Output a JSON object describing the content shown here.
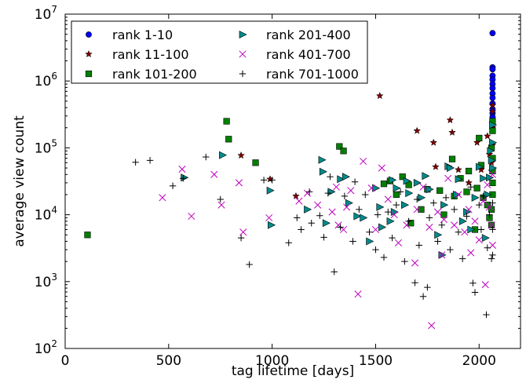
{
  "chart_data": {
    "type": "scatter",
    "xlabel": "tag lifetime [days]",
    "ylabel": "average view count",
    "xlim": [
      0,
      2200
    ],
    "ylim": [
      100,
      10000000
    ],
    "yscale": "log",
    "xticks": [
      {
        "value": 0,
        "label": "0"
      },
      {
        "value": 500,
        "label": "500"
      },
      {
        "value": 1000,
        "label": "1000"
      },
      {
        "value": 1500,
        "label": "1500"
      },
      {
        "value": 2000,
        "label": "2000"
      }
    ],
    "yticks": [
      {
        "value": 100,
        "base": "10",
        "exp": "2"
      },
      {
        "value": 1000,
        "base": "10",
        "exp": "3"
      },
      {
        "value": 10000,
        "base": "10",
        "exp": "4"
      },
      {
        "value": 100000,
        "base": "10",
        "exp": "5"
      },
      {
        "value": 1000000,
        "base": "10",
        "exp": "6"
      },
      {
        "value": 10000000,
        "base": "10",
        "exp": "7"
      }
    ],
    "grid": false,
    "legend_position": "top-left",
    "series": [
      {
        "name": "rank 1-10",
        "marker": "circle",
        "color": "#0000ff",
        "points": [
          [
            2065,
            5200000
          ],
          [
            2065,
            1600000
          ],
          [
            2065,
            1500000
          ],
          [
            2065,
            1200000
          ],
          [
            2065,
            1050000
          ],
          [
            2065,
            900000
          ],
          [
            2065,
            780000
          ],
          [
            2065,
            650000
          ],
          [
            2065,
            560000
          ],
          [
            2065,
            460000
          ],
          [
            2065,
            380000
          ],
          [
            2065,
            330000
          ],
          [
            2065,
            290000
          ]
        ]
      },
      {
        "name": "rank 11-100",
        "marker": "star",
        "color": "#800000",
        "points": [
          [
            850,
            77000
          ],
          [
            990,
            34000
          ],
          [
            1115,
            19000
          ],
          [
            1520,
            600000
          ],
          [
            1700,
            180000
          ],
          [
            1780,
            120000
          ],
          [
            1790,
            52000
          ],
          [
            1860,
            260000
          ],
          [
            1870,
            170000
          ],
          [
            1900,
            47000
          ],
          [
            1950,
            30000
          ],
          [
            1990,
            120000
          ],
          [
            2010,
            47000
          ],
          [
            2040,
            150000
          ],
          [
            2050,
            80000
          ],
          [
            2060,
            60000
          ],
          [
            2065,
            430000
          ],
          [
            2065,
            350000
          ],
          [
            2065,
            200000
          ],
          [
            2065,
            110000
          ],
          [
            2060,
            45000
          ]
        ]
      },
      {
        "name": "rank 101-200",
        "marker": "square",
        "color": "#008000",
        "points": [
          [
            108,
            5000
          ],
          [
            780,
            250000
          ],
          [
            790,
            135000
          ],
          [
            920,
            60000
          ],
          [
            1325,
            105000
          ],
          [
            1345,
            90000
          ],
          [
            1540,
            29000
          ],
          [
            1570,
            32000
          ],
          [
            1630,
            37000
          ],
          [
            1660,
            28000
          ],
          [
            1670,
            7500
          ],
          [
            1750,
            24000
          ],
          [
            1810,
            23000
          ],
          [
            1870,
            68000
          ],
          [
            1910,
            35000
          ],
          [
            1950,
            45000
          ],
          [
            1990,
            25000
          ],
          [
            2000,
            140000
          ],
          [
            2010,
            55000
          ],
          [
            2020,
            18000
          ],
          [
            2040,
            14000
          ],
          [
            2050,
            9000
          ],
          [
            2060,
            100000
          ],
          [
            2065,
            180000
          ],
          [
            2065,
            250000
          ],
          [
            2065,
            70000
          ],
          [
            2065,
            45000
          ],
          [
            2065,
            30000
          ],
          [
            2065,
            20000
          ],
          [
            2060,
            12000
          ],
          [
            2060,
            7000
          ],
          [
            1980,
            6000
          ],
          [
            1940,
            22000
          ],
          [
            1880,
            19000
          ],
          [
            1830,
            10000
          ],
          [
            1720,
            12000
          ],
          [
            1600,
            20000
          ]
        ]
      },
      {
        "name": "rank 201-400",
        "marker": "triangle-right",
        "color": "#008b8b",
        "points": [
          [
            575,
            36000
          ],
          [
            760,
            78000
          ],
          [
            990,
            23000
          ],
          [
            995,
            7000
          ],
          [
            1170,
            12000
          ],
          [
            1240,
            66000
          ],
          [
            1245,
            44000
          ],
          [
            1260,
            7500
          ],
          [
            1285,
            22000
          ],
          [
            1330,
            34000
          ],
          [
            1355,
            37000
          ],
          [
            1370,
            15000
          ],
          [
            1410,
            9500
          ],
          [
            1440,
            9000
          ],
          [
            1470,
            4000
          ],
          [
            1500,
            25000
          ],
          [
            1520,
            13000
          ],
          [
            1530,
            6500
          ],
          [
            1570,
            8000
          ],
          [
            1580,
            33000
          ],
          [
            1590,
            11000
          ],
          [
            1600,
            25000
          ],
          [
            1640,
            14000
          ],
          [
            1650,
            32000
          ],
          [
            1660,
            21000
          ],
          [
            1700,
            30000
          ],
          [
            1720,
            18000
          ],
          [
            1740,
            38000
          ],
          [
            1760,
            24000
          ],
          [
            1800,
            5000
          ],
          [
            1820,
            2500
          ],
          [
            1830,
            14000
          ],
          [
            1850,
            53000
          ],
          [
            1860,
            50000
          ],
          [
            1890,
            20000
          ],
          [
            1900,
            34000
          ],
          [
            1920,
            8000
          ],
          [
            1940,
            11000
          ],
          [
            1960,
            6000
          ],
          [
            1980,
            18000
          ],
          [
            2000,
            52000
          ],
          [
            2020,
            35000
          ],
          [
            2030,
            4500
          ],
          [
            2040,
            20000
          ],
          [
            2050,
            36000
          ],
          [
            2055,
            90000
          ],
          [
            2060,
            65000
          ],
          [
            2065,
            120000
          ],
          [
            2065,
            220000
          ],
          [
            2065,
            50000
          ]
        ]
      },
      {
        "name": "rank 401-700",
        "marker": "x",
        "color": "#bf00bf",
        "points": [
          [
            470,
            18000
          ],
          [
            565,
            48000
          ],
          [
            610,
            9500
          ],
          [
            720,
            40000
          ],
          [
            755,
            14000
          ],
          [
            840,
            30000
          ],
          [
            860,
            5500
          ],
          [
            985,
            9000
          ],
          [
            1130,
            16000
          ],
          [
            1170,
            21000
          ],
          [
            1220,
            14000
          ],
          [
            1290,
            11000
          ],
          [
            1310,
            26000
          ],
          [
            1320,
            7000
          ],
          [
            1345,
            6000
          ],
          [
            1360,
            13000
          ],
          [
            1380,
            23000
          ],
          [
            1415,
            650
          ],
          [
            1440,
            63000
          ],
          [
            1480,
            25000
          ],
          [
            1500,
            6000
          ],
          [
            1530,
            50000
          ],
          [
            1560,
            17000
          ],
          [
            1590,
            10000
          ],
          [
            1610,
            3800
          ],
          [
            1650,
            7000
          ],
          [
            1690,
            1900
          ],
          [
            1700,
            12000
          ],
          [
            1730,
            26000
          ],
          [
            1760,
            6500
          ],
          [
            1770,
            220
          ],
          [
            1800,
            11000
          ],
          [
            1820,
            2500
          ],
          [
            1830,
            8500
          ],
          [
            1850,
            35000
          ],
          [
            1880,
            7000
          ],
          [
            1900,
            20000
          ],
          [
            1930,
            5500
          ],
          [
            1950,
            12000
          ],
          [
            1960,
            2700
          ],
          [
            1980,
            8000
          ],
          [
            2000,
            4200
          ],
          [
            2020,
            16000
          ],
          [
            2030,
            900
          ],
          [
            2040,
            28000
          ],
          [
            2050,
            13000
          ],
          [
            2060,
            7000
          ],
          [
            2065,
            3500
          ],
          [
            2065,
            40000
          ]
        ]
      },
      {
        "name": "rank 701-1000",
        "marker": "plus",
        "color": "#000000",
        "points": [
          [
            340,
            61000
          ],
          [
            410,
            65000
          ],
          [
            520,
            27000
          ],
          [
            570,
            35000
          ],
          [
            680,
            73000
          ],
          [
            750,
            17000
          ],
          [
            850,
            4500
          ],
          [
            890,
            1800
          ],
          [
            960,
            33000
          ],
          [
            1000,
            33000
          ],
          [
            1080,
            3800
          ],
          [
            1120,
            9000
          ],
          [
            1140,
            6000
          ],
          [
            1180,
            22000
          ],
          [
            1190,
            7500
          ],
          [
            1230,
            9700
          ],
          [
            1250,
            4600
          ],
          [
            1270,
            21000
          ],
          [
            1280,
            37000
          ],
          [
            1300,
            1400
          ],
          [
            1330,
            6500
          ],
          [
            1350,
            19000
          ],
          [
            1390,
            4000
          ],
          [
            1400,
            31000
          ],
          [
            1420,
            12000
          ],
          [
            1450,
            20000
          ],
          [
            1470,
            5500
          ],
          [
            1500,
            3000
          ],
          [
            1510,
            10000
          ],
          [
            1540,
            2300
          ],
          [
            1560,
            11000
          ],
          [
            1580,
            4500
          ],
          [
            1600,
            14000
          ],
          [
            1620,
            22000
          ],
          [
            1640,
            2000
          ],
          [
            1660,
            8000
          ],
          [
            1690,
            960
          ],
          [
            1700,
            17000
          ],
          [
            1710,
            3500
          ],
          [
            1730,
            600
          ],
          [
            1750,
            820
          ],
          [
            1760,
            9000
          ],
          [
            1780,
            15000
          ],
          [
            1800,
            4000
          ],
          [
            1820,
            7000
          ],
          [
            1840,
            18000
          ],
          [
            1860,
            3000
          ],
          [
            1880,
            12000
          ],
          [
            1900,
            5500
          ],
          [
            1920,
            2200
          ],
          [
            1940,
            9500
          ],
          [
            1960,
            26000
          ],
          [
            1970,
            950
          ],
          [
            1980,
            690
          ],
          [
            2000,
            14000
          ],
          [
            2010,
            6000
          ],
          [
            2020,
            19000
          ],
          [
            2035,
            320
          ],
          [
            2040,
            3200
          ],
          [
            2050,
            10000
          ],
          [
            2060,
            2200
          ],
          [
            2065,
            15000
          ],
          [
            2065,
            6000
          ],
          [
            2065,
            2500
          ]
        ]
      }
    ]
  }
}
